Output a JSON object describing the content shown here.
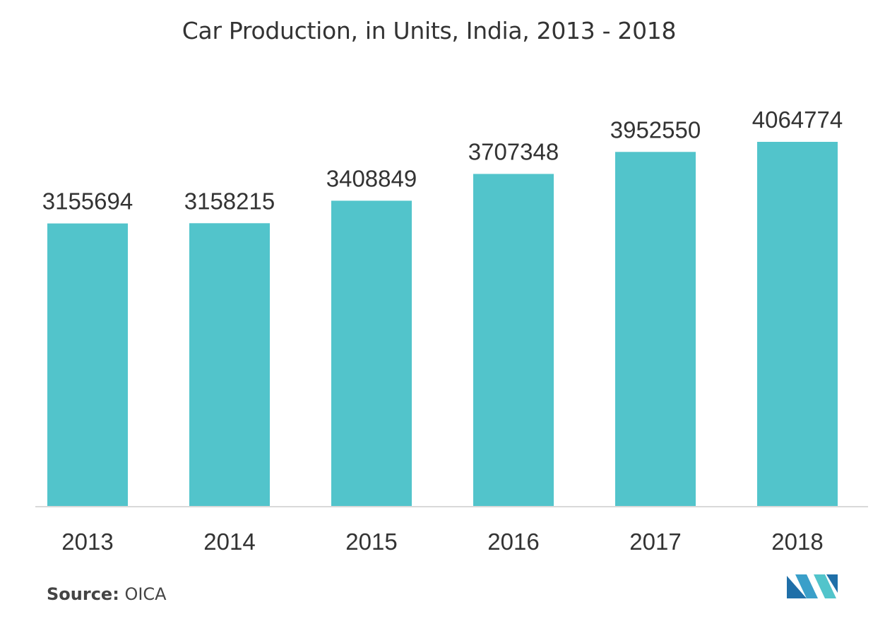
{
  "chart_data": {
    "type": "bar",
    "title": "Car Production, in Units, India, 2013 - 2018",
    "categories": [
      "2013",
      "2014",
      "2015",
      "2016",
      "2017",
      "2018"
    ],
    "values": [
      3155694,
      3158215,
      3408849,
      3707348,
      3952550,
      4064774
    ],
    "data_labels": [
      "3155694",
      "3158215",
      "3408849",
      "3707348",
      "3952550",
      "4064774"
    ],
    "xlabel": "",
    "ylabel": "",
    "ylim": [
      0,
      4064774
    ],
    "grid": false,
    "legend": "none",
    "bar_color": "#52c4cb",
    "axis_color": "#d9d9d9"
  },
  "source": {
    "key": "Source:",
    "value": "OICA"
  },
  "logo": {
    "icon": "mordor-intelligence-logo-icon",
    "colors": [
      "#1f6fa8",
      "#52c4cb"
    ]
  }
}
